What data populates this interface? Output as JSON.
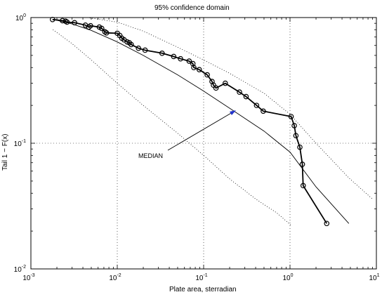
{
  "chart_data": {
    "type": "line",
    "title": "95% confidence domain",
    "xlabel": "Plate area, sterradian",
    "ylabel": "Tail 1 − F(x)",
    "xscale": "log",
    "yscale": "log",
    "xlim": [
      0.001,
      10
    ],
    "ylim": [
      0.01,
      1
    ],
    "grid": true,
    "x_ticks": [
      {
        "base": "10",
        "exp": "-3",
        "value": 0.001
      },
      {
        "base": "10",
        "exp": "-2",
        "value": 0.01
      },
      {
        "base": "10",
        "exp": "-1",
        "value": 0.1
      },
      {
        "base": "10",
        "exp": "0",
        "value": 1
      },
      {
        "base": "10",
        "exp": "1",
        "value": 10
      }
    ],
    "y_ticks": [
      {
        "base": "10",
        "exp": "-2",
        "value": 0.01
      },
      {
        "base": "10",
        "exp": "-1",
        "value": 0.1
      },
      {
        "base": "10",
        "exp": "0",
        "value": 1
      }
    ],
    "annotation": {
      "text": "MEDIAN",
      "points_to": [
        0.23,
        0.18
      ]
    },
    "series": [
      {
        "style": "solid-thick-circles",
        "x": [
          0.00178,
          0.00232,
          0.00252,
          0.00262,
          0.0032,
          0.00428,
          0.00468,
          0.0049,
          0.0062,
          0.0066,
          0.0072,
          0.0075,
          0.01,
          0.0107,
          0.0113,
          0.012,
          0.013,
          0.0138,
          0.0145,
          0.0176,
          0.021,
          0.033,
          0.045,
          0.054,
          0.068,
          0.075,
          0.077,
          0.089,
          0.11,
          0.125,
          0.13,
          0.139,
          0.178,
          0.26,
          0.31,
          0.41,
          0.49,
          1.03,
          1.12,
          1.17,
          1.3,
          1.39,
          1.42,
          2.66
        ],
        "y": [
          0.965,
          0.945,
          0.935,
          0.92,
          0.91,
          0.87,
          0.84,
          0.86,
          0.84,
          0.82,
          0.77,
          0.755,
          0.75,
          0.72,
          0.685,
          0.665,
          0.64,
          0.63,
          0.61,
          0.57,
          0.55,
          0.52,
          0.49,
          0.47,
          0.45,
          0.43,
          0.4,
          0.385,
          0.35,
          0.31,
          0.29,
          0.275,
          0.3,
          0.255,
          0.235,
          0.2,
          0.18,
          0.163,
          0.138,
          0.115,
          0.093,
          0.068,
          0.046,
          0.023
        ]
      },
      {
        "style": "solid-thin",
        "x": [
          0.00178,
          0.003,
          0.005,
          0.01,
          0.02,
          0.05,
          0.1,
          0.2,
          0.5,
          1.0,
          2.0,
          4.8
        ],
        "y": [
          0.97,
          0.89,
          0.79,
          0.64,
          0.5,
          0.35,
          0.26,
          0.19,
          0.125,
          0.085,
          0.045,
          0.023
        ]
      },
      {
        "style": "dotted-upper",
        "x": [
          0.0045,
          0.01,
          0.02,
          0.05,
          0.1,
          0.2,
          0.5,
          1.0,
          2.0,
          4.8,
          9.0
        ],
        "y": [
          1.0,
          0.92,
          0.78,
          0.58,
          0.46,
          0.36,
          0.25,
          0.17,
          0.1,
          0.053,
          0.036
        ]
      },
      {
        "style": "dotted-lower",
        "x": [
          0.0018,
          0.003,
          0.005,
          0.01,
          0.02,
          0.05,
          0.1,
          0.2,
          0.4,
          0.7,
          1.05
        ],
        "y": [
          0.8,
          0.62,
          0.46,
          0.3,
          0.2,
          0.12,
          0.08,
          0.052,
          0.036,
          0.028,
          0.022
        ]
      }
    ]
  }
}
